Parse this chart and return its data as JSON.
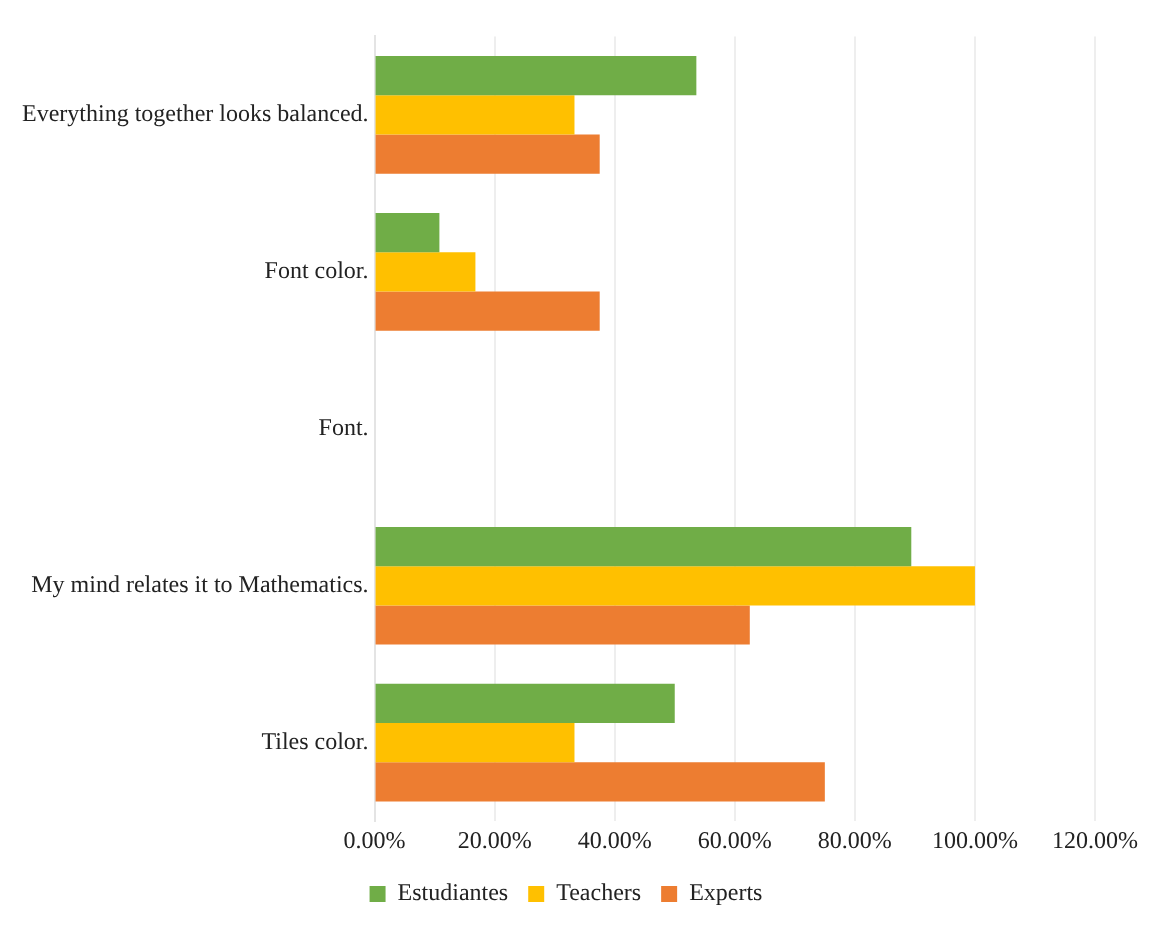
{
  "chart_data": {
    "type": "bar",
    "orientation": "horizontal",
    "categories": [
      "Everything together looks balanced.",
      "Font color.",
      "Font.",
      "My mind relates it to Mathematics.",
      "Tiles color."
    ],
    "series": [
      {
        "name": "Estudiantes",
        "color": "#70ad47",
        "values": [
          53.6,
          10.8,
          0,
          89.4,
          50
        ]
      },
      {
        "name": "Teachers",
        "color": "#ffc000",
        "values": [
          33.3,
          16.8,
          0,
          100,
          33.3
        ]
      },
      {
        "name": "Experts",
        "color": "#ed7d31",
        "values": [
          37.5,
          37.5,
          0,
          62.5,
          75
        ]
      }
    ],
    "xlim": [
      0,
      120
    ],
    "xticks": [
      {
        "value": 0,
        "label": "0.00%"
      },
      {
        "value": 20,
        "label": "20.00%"
      },
      {
        "value": 40,
        "label": "40.00%"
      },
      {
        "value": 60,
        "label": "60.00%"
      },
      {
        "value": 80,
        "label": "80.00%"
      },
      {
        "value": 100,
        "label": "100.00%"
      },
      {
        "value": 120,
        "label": "120.00%"
      }
    ],
    "grid": "x",
    "legend": "bottom"
  }
}
